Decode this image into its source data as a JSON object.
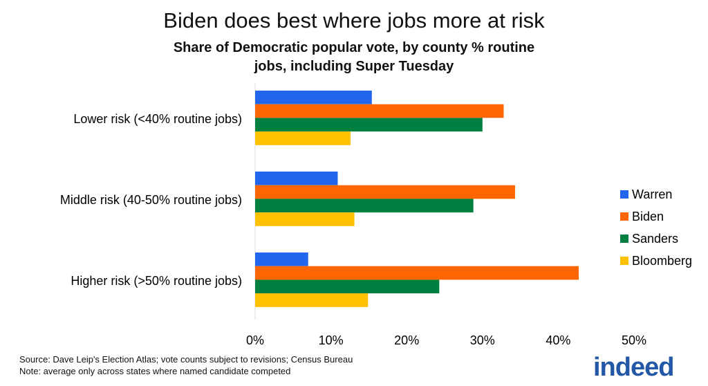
{
  "chart_data": {
    "type": "bar",
    "orientation": "horizontal",
    "title": "Biden does best where jobs more at risk",
    "subtitle": "Share of Democratic popular vote, by county % routine jobs, including Super Tuesday",
    "categories": [
      "Lower risk  (<40% routine jobs)",
      "Middle risk (40-50% routine jobs)",
      "Higher risk (>50% routine jobs)"
    ],
    "series": [
      {
        "name": "Warren",
        "color": "#2266ee",
        "values": [
          15.4,
          10.9,
          7.0
        ]
      },
      {
        "name": "Biden",
        "color": "#ff6600",
        "values": [
          32.8,
          34.3,
          42.7
        ]
      },
      {
        "name": "Sanders",
        "color": "#008040",
        "values": [
          30.0,
          28.8,
          24.3
        ]
      },
      {
        "name": "Bloomberg",
        "color": "#ffc000",
        "values": [
          12.6,
          13.1,
          14.9
        ]
      }
    ],
    "xlim": [
      0,
      50
    ],
    "xticks": [
      "0%",
      "10%",
      "20%",
      "30%",
      "40%",
      "50%"
    ],
    "grid": false,
    "legend": "right"
  },
  "footer": {
    "source": "Source: Dave Leip's Election Atlas; vote counts subject to revisions; Census Bureau",
    "note": "Note: average only across states where named candidate competed"
  },
  "logo": "indeed"
}
